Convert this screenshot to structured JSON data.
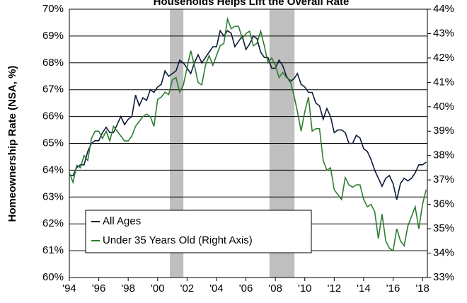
{
  "chart_data": {
    "type": "line",
    "title": "Households Helps Lift the Overall Rate",
    "ylabel": "Homeownership Rate (NSA, %)",
    "legend": "lower left",
    "grid": true,
    "xlim": [
      1994,
      2018.33
    ],
    "xticks": [
      {
        "value": 1994,
        "label": "'94"
      },
      {
        "value": 1996,
        "label": "'96"
      },
      {
        "value": 1998,
        "label": "'98"
      },
      {
        "value": 2000,
        "label": "'00"
      },
      {
        "value": 2002,
        "label": "'02"
      },
      {
        "value": 2004,
        "label": "'04"
      },
      {
        "value": 2006,
        "label": "'06"
      },
      {
        "value": 2008,
        "label": "'08"
      },
      {
        "value": 2010,
        "label": "'10"
      },
      {
        "value": 2012,
        "label": "'12"
      },
      {
        "value": 2014,
        "label": "'14"
      },
      {
        "value": 2016,
        "label": "'16"
      },
      {
        "value": 2018,
        "label": "'18"
      }
    ],
    "ylim": [
      60,
      70
    ],
    "yticks": [
      {
        "value": 60,
        "label": "60%"
      },
      {
        "value": 61,
        "label": "61%"
      },
      {
        "value": 62,
        "label": "62%"
      },
      {
        "value": 63,
        "label": "63%"
      },
      {
        "value": 64,
        "label": "64%"
      },
      {
        "value": 65,
        "label": "65%"
      },
      {
        "value": 66,
        "label": "66%"
      },
      {
        "value": 67,
        "label": "67%"
      },
      {
        "value": 68,
        "label": "68%"
      },
      {
        "value": 69,
        "label": "69%"
      },
      {
        "value": 70,
        "label": "70%"
      }
    ],
    "y2lim": [
      33,
      44
    ],
    "y2ticks": [
      {
        "value": 33,
        "label": "33%"
      },
      {
        "value": 34,
        "label": "34%"
      },
      {
        "value": 35,
        "label": "35%"
      },
      {
        "value": 36,
        "label": "36%"
      },
      {
        "value": 37,
        "label": "37%"
      },
      {
        "value": 38,
        "label": "38%"
      },
      {
        "value": 39,
        "label": "39%"
      },
      {
        "value": 40,
        "label": "40%"
      },
      {
        "value": 41,
        "label": "41%"
      },
      {
        "value": 42,
        "label": "42%"
      },
      {
        "value": 43,
        "label": "43%"
      },
      {
        "value": 44,
        "label": "44%"
      }
    ],
    "shaded_ranges": [
      [
        2000.83,
        2001.75
      ],
      [
        2007.6,
        2009.3
      ]
    ],
    "shade_color": "#bfbfbf",
    "x": [
      1994,
      1994.25,
      1994.5,
      1994.75,
      1995,
      1995.25,
      1995.5,
      1995.75,
      1996,
      1996.25,
      1996.5,
      1996.75,
      1997,
      1997.25,
      1997.5,
      1997.75,
      1998,
      1998.25,
      1998.5,
      1998.75,
      1999,
      1999.25,
      1999.5,
      1999.75,
      2000,
      2000.25,
      2000.5,
      2000.75,
      2001,
      2001.25,
      2001.5,
      2001.75,
      2002,
      2002.25,
      2002.5,
      2002.75,
      2003,
      2003.25,
      2003.5,
      2003.75,
      2004,
      2004.25,
      2004.5,
      2004.75,
      2005,
      2005.25,
      2005.5,
      2005.75,
      2006,
      2006.25,
      2006.5,
      2006.75,
      2007,
      2007.25,
      2007.5,
      2007.75,
      2008,
      2008.25,
      2008.5,
      2008.75,
      2009,
      2009.25,
      2009.5,
      2009.75,
      2010,
      2010.25,
      2010.5,
      2010.75,
      2011,
      2011.25,
      2011.5,
      2011.75,
      2012,
      2012.25,
      2012.5,
      2012.75,
      2013,
      2013.25,
      2013.5,
      2013.75,
      2014,
      2014.25,
      2014.5,
      2014.75,
      2015,
      2015.25,
      2015.5,
      2015.75,
      2016,
      2016.25,
      2016.5,
      2016.75,
      2017,
      2017.25,
      2017.5,
      2017.75,
      2018,
      2018.25
    ],
    "series": [
      {
        "name": "All Ages",
        "color": "#0d1a3a",
        "values": [
          63.8,
          63.8,
          64.1,
          64.2,
          64.2,
          64.7,
          65.0,
          65.1,
          65.1,
          65.4,
          65.6,
          65.4,
          65.4,
          65.7,
          66.0,
          65.7,
          65.9,
          66.0,
          66.8,
          66.4,
          66.7,
          66.6,
          67.0,
          66.9,
          67.1,
          67.2,
          67.7,
          67.5,
          67.6,
          67.7,
          68.1,
          68.0,
          67.8,
          67.6,
          68.0,
          68.3,
          68.0,
          68.2,
          68.4,
          68.6,
          68.6,
          69.2,
          69.0,
          69.2,
          69.1,
          68.6,
          68.8,
          69.0,
          68.5,
          68.7,
          69.0,
          68.9,
          68.4,
          68.2,
          68.2,
          67.8,
          67.8,
          68.1,
          67.9,
          67.5,
          67.3,
          67.4,
          67.6,
          67.2,
          67.1,
          66.9,
          66.9,
          66.5,
          66.4,
          65.9,
          66.3,
          66.0,
          65.4,
          65.5,
          65.5,
          65.4,
          65.0,
          65.0,
          65.3,
          65.2,
          64.8,
          64.7,
          64.4,
          64.0,
          63.7,
          63.4,
          63.7,
          63.8,
          63.5,
          62.9,
          63.5,
          63.7,
          63.6,
          63.7,
          63.9,
          64.2,
          64.2,
          64.3
        ]
      },
      {
        "name": "Under 35 Years Old (Right Axis)",
        "color": "#2e7d32",
        "axis": "y2",
        "values": [
          37.3,
          36.9,
          37.6,
          37.5,
          38.0,
          37.8,
          38.7,
          39.0,
          39.0,
          38.7,
          39.0,
          38.6,
          39.2,
          39.0,
          38.8,
          38.6,
          38.6,
          38.8,
          39.2,
          39.4,
          39.6,
          39.7,
          39.6,
          39.2,
          40.3,
          40.4,
          40.6,
          40.5,
          41.1,
          41.2,
          40.6,
          40.9,
          41.6,
          42.3,
          41.7,
          41.0,
          40.9,
          41.7,
          42.1,
          41.7,
          42.1,
          42.5,
          42.6,
          43.6,
          43.2,
          43.3,
          43.3,
          42.8,
          43.0,
          43.1,
          42.5,
          42.6,
          43.1,
          42.5,
          41.8,
          42.0,
          41.7,
          41.2,
          41.4,
          41.2,
          41.1,
          40.5,
          39.8,
          39.0,
          39.8,
          40.4,
          39.0,
          39.1,
          39.1,
          37.8,
          37.4,
          37.5,
          36.6,
          36.4,
          36.2,
          37.1,
          36.8,
          36.7,
          36.8,
          36.8,
          36.2,
          35.9,
          36.0,
          35.7,
          34.6,
          35.6,
          34.5,
          34.2,
          34.1,
          35.0,
          34.5,
          34.3,
          35.1,
          35.5,
          35.9,
          35.0,
          36.0,
          36.6
        ]
      }
    ]
  }
}
